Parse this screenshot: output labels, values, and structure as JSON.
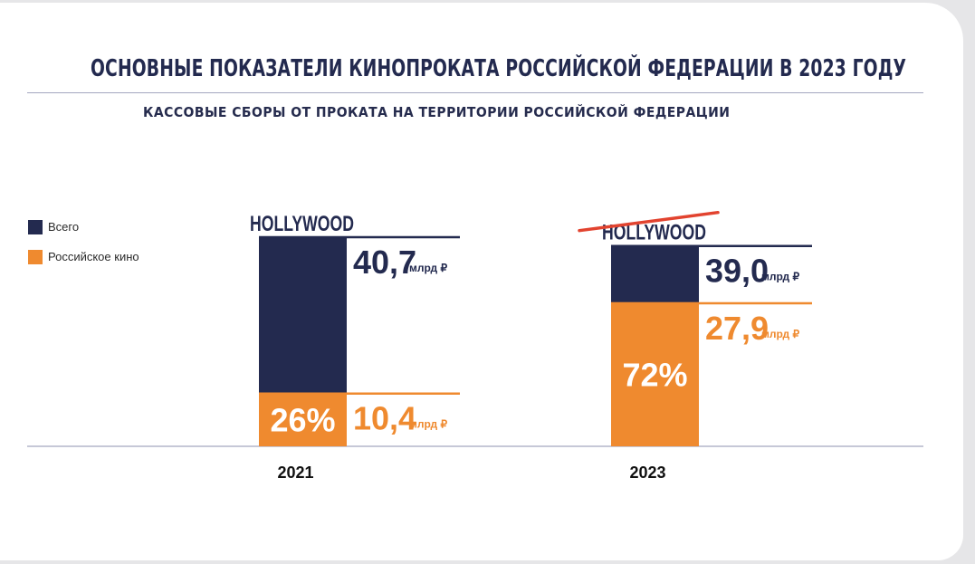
{
  "colors": {
    "total": "#232a4f",
    "russian": "#ef8a2f",
    "strike": "#e2432f"
  },
  "header": {
    "title": "ОСНОВНЫЕ ПОКАЗАТЕЛИ КИНОПРОКАТА РОССИЙСКОЙ ФЕДЕРАЦИИ В 2023 ГОДУ",
    "subtitle": "КАССОВЫЕ СБОРЫ ОТ ПРОКАТА НА ТЕРРИТОРИИ РОССИЙСКОЙ ФЕДЕРАЦИИ"
  },
  "legend": {
    "total": "Всего",
    "russian": "Российское кино"
  },
  "chart_data": {
    "type": "bar",
    "categories": [
      "2021",
      "2023"
    ],
    "series": [
      {
        "name": "Всего",
        "values": [
          40.7,
          39.0
        ]
      },
      {
        "name": "Российское кино",
        "values": [
          10.4,
          27.9
        ]
      }
    ],
    "value_labels": {
      "total": [
        "40,7",
        "39,0"
      ],
      "russian": [
        "10,4",
        "27,9"
      ]
    },
    "unit": "млрд ₽",
    "shares": [
      "26%",
      "72%"
    ],
    "share_values": [
      26,
      72
    ],
    "banners": [
      "HOLLYWOOD",
      "HOLLYWOOD"
    ],
    "banner_struck": [
      false,
      true
    ]
  }
}
